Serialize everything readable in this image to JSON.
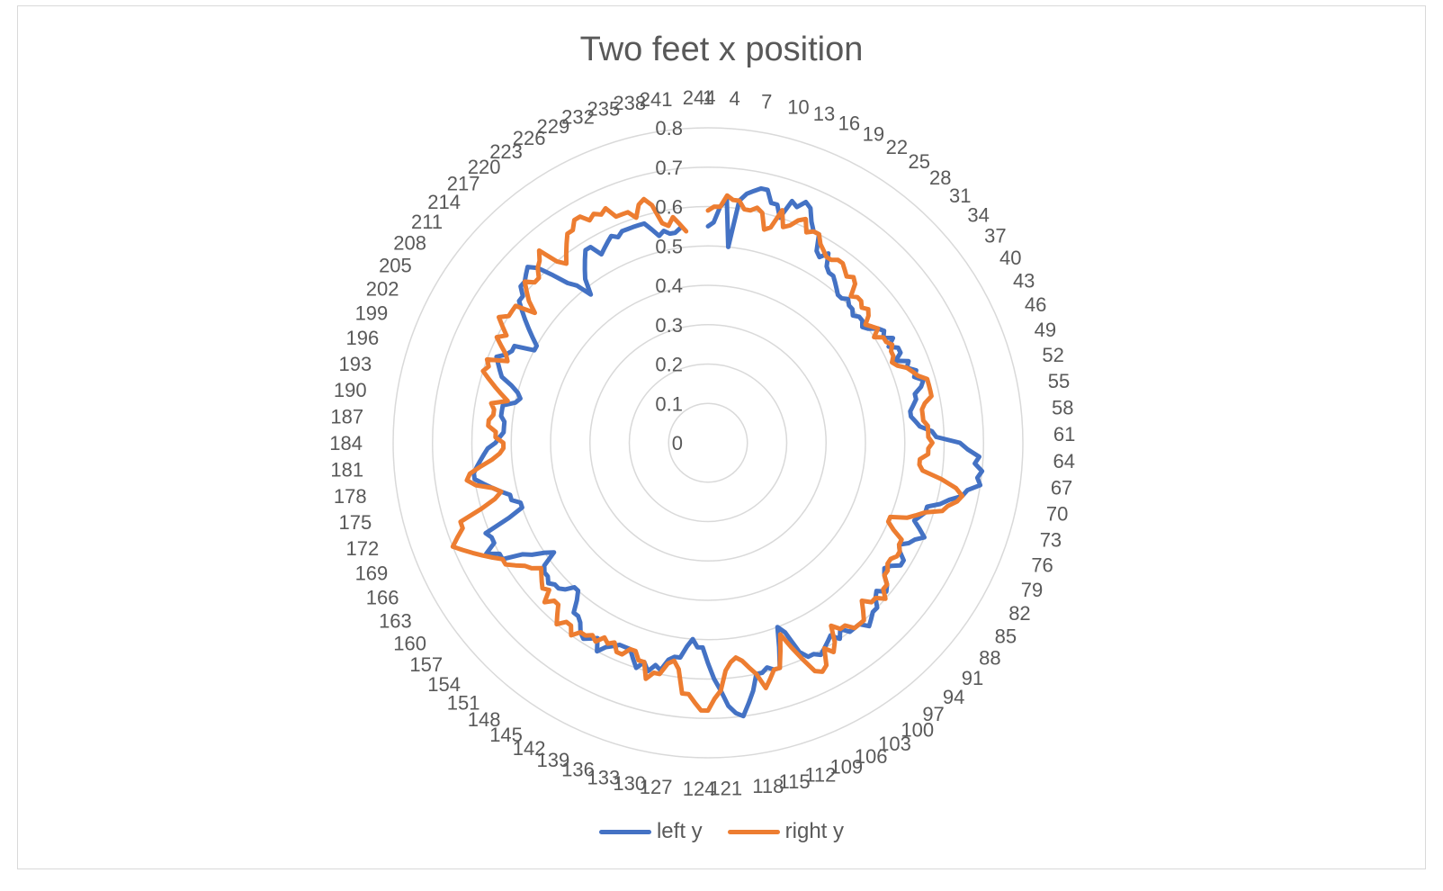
{
  "chart_data": {
    "type": "radar",
    "title": "Two feet x position",
    "r_axis": {
      "min": 0,
      "max": 0.8,
      "step": 0.1,
      "tick_labels": [
        "0",
        "0.1",
        "0.2",
        "0.3",
        "0.4",
        "0.5",
        "0.6",
        "0.7",
        "0.8"
      ]
    },
    "category_count": 244,
    "category_label_step": 3,
    "grid": true,
    "legend_position": "bottom",
    "series": [
      {
        "name": "left y",
        "color": "#4472c4",
        "values": [
          0.55,
          0.56,
          0.6,
          0.62,
          0.5,
          0.62,
          0.64,
          0.65,
          0.66,
          0.66,
          0.63,
          0.63,
          0.6,
          0.65,
          0.64,
          0.66,
          0.65,
          0.62,
          0.6,
          0.6,
          0.56,
          0.55,
          0.57,
          0.54,
          0.53,
          0.53,
          0.52,
          0.51,
          0.5,
          0.5,
          0.51,
          0.5,
          0.5,
          0.49,
          0.5,
          0.5,
          0.49,
          0.5,
          0.52,
          0.53,
          0.52,
          0.54,
          0.52,
          0.54,
          0.54,
          0.52,
          0.55,
          0.54,
          0.56,
          0.55,
          0.57,
          0.56,
          0.54,
          0.54,
          0.53,
          0.52,
          0.52,
          0.53,
          0.54,
          0.57,
          0.58,
          0.64,
          0.66,
          0.69,
          0.68,
          0.7,
          0.69,
          0.7,
          0.67,
          0.66,
          0.63,
          0.61,
          0.58,
          0.58,
          0.57,
          0.56,
          0.58,
          0.6,
          0.58,
          0.57,
          0.55,
          0.56,
          0.58,
          0.58,
          0.56,
          0.55,
          0.56,
          0.58,
          0.59,
          0.57,
          0.58,
          0.6,
          0.6,
          0.61,
          0.62,
          0.6,
          0.6,
          0.6,
          0.58,
          0.6,
          0.58,
          0.59,
          0.6,
          0.61,
          0.6,
          0.6,
          0.58,
          0.52,
          0.5,
          0.55,
          0.6,
          0.6,
          0.59,
          0.6,
          0.6,
          0.64,
          0.67,
          0.7,
          0.69,
          0.67,
          0.63,
          0.6,
          0.56,
          0.52,
          0.52,
          0.5,
          0.52,
          0.55,
          0.55,
          0.56,
          0.59,
          0.58,
          0.6,
          0.58,
          0.6,
          0.58,
          0.56,
          0.56,
          0.56,
          0.57,
          0.58,
          0.6,
          0.57,
          0.58,
          0.59,
          0.58,
          0.56,
          0.55,
          0.55,
          0.52,
          0.5,
          0.5,
          0.52,
          0.53,
          0.53,
          0.54,
          0.53,
          0.53,
          0.52,
          0.48,
          0.5,
          0.53,
          0.55,
          0.6,
          0.6,
          0.63,
          0.6,
          0.6,
          0.61,
          0.54,
          0.5,
          0.5,
          0.52,
          0.52,
          0.54,
          0.56,
          0.58,
          0.6,
          0.6,
          0.59,
          0.58,
          0.57,
          0.56,
          0.54,
          0.53,
          0.52,
          0.52,
          0.52,
          0.53,
          0.53,
          0.53,
          0.5,
          0.49,
          0.5,
          0.52,
          0.55,
          0.56,
          0.57,
          0.58,
          0.56,
          0.55,
          0.55,
          0.5,
          0.5,
          0.52,
          0.54,
          0.56,
          0.58,
          0.6,
          0.6,
          0.62,
          0.62,
          0.63,
          0.64,
          0.62,
          0.58,
          0.54,
          0.52,
          0.48,
          0.52,
          0.54,
          0.56,
          0.58,
          0.58,
          0.55,
          0.56,
          0.57,
          0.58,
          0.57,
          0.58,
          0.58,
          0.58,
          0.58,
          0.58,
          0.56,
          0.54,
          0.55,
          0.54,
          0.54,
          0.55
        ]
      },
      {
        "name": "right y",
        "color": "#ed7d31",
        "values": [
          0.59,
          0.6,
          0.6,
          0.63,
          0.62,
          0.62,
          0.6,
          0.6,
          0.61,
          0.6,
          0.56,
          0.57,
          0.62,
          0.58,
          0.59,
          0.61,
          0.62,
          0.59,
          0.6,
          0.6,
          0.58,
          0.57,
          0.56,
          0.56,
          0.57,
          0.57,
          0.56,
          0.55,
          0.56,
          0.55,
          0.52,
          0.53,
          0.53,
          0.52,
          0.53,
          0.52,
          0.5,
          0.51,
          0.52,
          0.5,
          0.52,
          0.52,
          0.53,
          0.52,
          0.52,
          0.51,
          0.52,
          0.54,
          0.55,
          0.56,
          0.58,
          0.58,
          0.58,
          0.58,
          0.56,
          0.55,
          0.55,
          0.55,
          0.56,
          0.56,
          0.56,
          0.57,
          0.56,
          0.56,
          0.54,
          0.54,
          0.55,
          0.6,
          0.64,
          0.66,
          0.65,
          0.63,
          0.62,
          0.58,
          0.56,
          0.54,
          0.5,
          0.5,
          0.52,
          0.55,
          0.55,
          0.56,
          0.56,
          0.55,
          0.55,
          0.56,
          0.56,
          0.58,
          0.58,
          0.6,
          0.58,
          0.58,
          0.56,
          0.58,
          0.6,
          0.6,
          0.6,
          0.58,
          0.58,
          0.56,
          0.6,
          0.62,
          0.6,
          0.64,
          0.65,
          0.64,
          0.6,
          0.56,
          0.52,
          0.56,
          0.6,
          0.6,
          0.62,
          0.64,
          0.6,
          0.58,
          0.56,
          0.55,
          0.56,
          0.58,
          0.63,
          0.65,
          0.68,
          0.68,
          0.66,
          0.64,
          0.64,
          0.58,
          0.56,
          0.57,
          0.6,
          0.6,
          0.62,
          0.58,
          0.58,
          0.56,
          0.56,
          0.58,
          0.58,
          0.56,
          0.57,
          0.56,
          0.58,
          0.57,
          0.58,
          0.58,
          0.6,
          0.58,
          0.58,
          0.6,
          0.58,
          0.56,
          0.56,
          0.58,
          0.55,
          0.56,
          0.55,
          0.54,
          0.53,
          0.55,
          0.56,
          0.58,
          0.6,
          0.6,
          0.62,
          0.64,
          0.66,
          0.68,
          0.7,
          0.68,
          0.66,
          0.66,
          0.6,
          0.56,
          0.54,
          0.56,
          0.6,
          0.62,
          0.61,
          0.58,
          0.55,
          0.53,
          0.52,
          0.52,
          0.54,
          0.54,
          0.56,
          0.56,
          0.55,
          0.55,
          0.56,
          0.52,
          0.54,
          0.56,
          0.58,
          0.6,
          0.59,
          0.6,
          0.55,
          0.56,
          0.58,
          0.6,
          0.58,
          0.6,
          0.62,
          0.6,
          0.6,
          0.6,
          0.55,
          0.58,
          0.6,
          0.62,
          0.6,
          0.6,
          0.62,
          0.63,
          0.65,
          0.6,
          0.58,
          0.6,
          0.62,
          0.64,
          0.64,
          0.66,
          0.66,
          0.64,
          0.65,
          0.64,
          0.65,
          0.62,
          0.62,
          0.62,
          0.6,
          0.63,
          0.64,
          0.62,
          0.57,
          0.56,
          0.58,
          0.56,
          0.54
        ]
      }
    ]
  }
}
